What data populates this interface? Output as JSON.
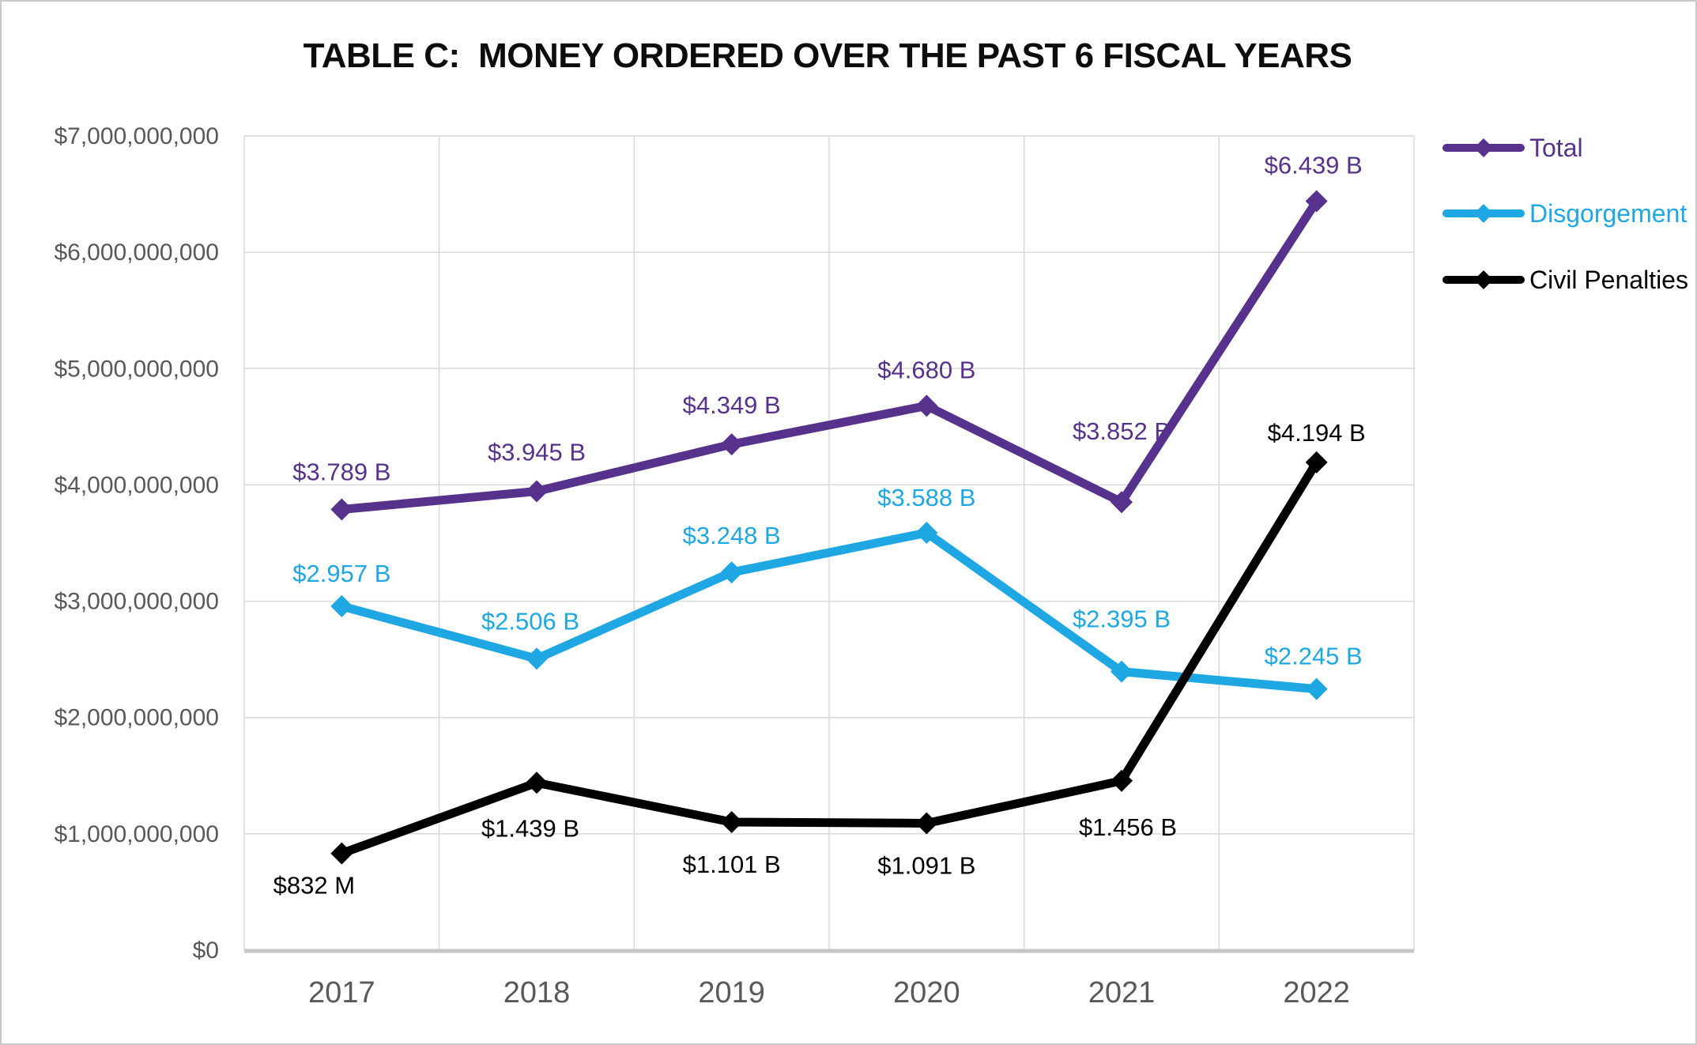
{
  "title": "TABLE C:  MONEY ORDERED OVER THE PAST 6 FISCAL YEARS",
  "chart_data": {
    "type": "line",
    "x": [
      "2017",
      "2018",
      "2019",
      "2020",
      "2021",
      "2022"
    ],
    "series": [
      {
        "name": "Total",
        "color": "#56328C",
        "values": [
          3789000000,
          3945000000,
          4349000000,
          4680000000,
          3852000000,
          6439000000
        ],
        "labels": [
          "$3.789 B",
          "$3.945 B",
          "$4.349 B",
          "$4.680 B",
          "$3.852 B",
          "$6.439 B"
        ],
        "label_side": [
          "above",
          "above",
          "above",
          "above",
          "above",
          "above"
        ]
      },
      {
        "name": "Disgorgement",
        "color": "#1EA7E3",
        "values": [
          2957000000,
          2506000000,
          3248000000,
          3588000000,
          2395000000,
          2245000000
        ],
        "labels": [
          "$2.957 B",
          "$2.506 B",
          "$3.248 B",
          "$3.588 B",
          "$2.395 B",
          "$2.245 B"
        ],
        "label_side": [
          "above",
          "above",
          "above",
          "above",
          "above",
          "above"
        ]
      },
      {
        "name": "Civil Penalties",
        "color": "#000000",
        "values": [
          832000000,
          1439000000,
          1101000000,
          1091000000,
          1456000000,
          4194000000
        ],
        "labels": [
          "$832 M",
          "$1.439 B",
          "$1.101 B",
          "$1.091 B",
          "$1.456 B",
          "$4.194 B"
        ],
        "label_side": [
          "below",
          "below",
          "below",
          "below",
          "below",
          "above"
        ]
      }
    ],
    "ylim": [
      0,
      7000000000
    ],
    "ytick_interval": 1000000000,
    "ytick_labels": [
      "$0",
      "$1,000,000,000",
      "$2,000,000,000",
      "$3,000,000,000",
      "$4,000,000,000",
      "$5,000,000,000",
      "$6,000,000,000",
      "$7,000,000,000"
    ],
    "grid": true,
    "legend_position": "right",
    "axis_label_color": "#595959",
    "gridline_color": "#d9d9d9",
    "axis_line_color": "#c6c6c6"
  }
}
